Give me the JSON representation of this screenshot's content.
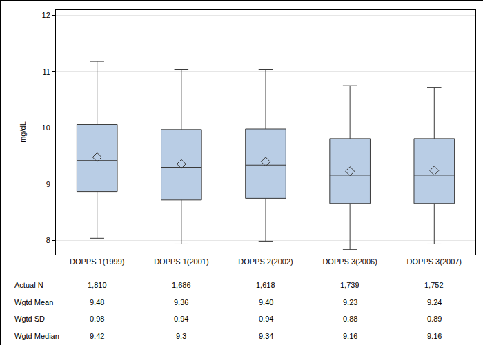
{
  "chart_data": {
    "type": "box",
    "y_label": "mg/dL",
    "categories": [
      "DOPPS 1(1999)",
      "DOPPS 1(2001)",
      "DOPPS 2(2002)",
      "DOPPS 3(2006)",
      "DOPPS 3(2007)"
    ],
    "lower_whisker": [
      8.04,
      7.94,
      7.99,
      7.84,
      7.94
    ],
    "q1": [
      8.87,
      8.72,
      8.75,
      8.66,
      8.66
    ],
    "median": [
      9.42,
      9.3,
      9.34,
      9.16,
      9.16
    ],
    "q3": [
      10.06,
      9.97,
      9.98,
      9.81,
      9.81
    ],
    "upper_whisker": [
      11.18,
      11.04,
      11.04,
      10.75,
      10.72
    ],
    "mean": [
      9.48,
      9.36,
      9.4,
      9.23,
      9.24
    ],
    "color": "#b9cde5",
    "marker": "diamond-open",
    "ylim": [
      7.75,
      12.1
    ],
    "yticks": [
      8,
      9,
      10,
      11,
      12
    ],
    "grid": true,
    "table": {
      "rows": [
        {
          "label": "Actual N",
          "values": [
            "1,810",
            "1,686",
            "1,618",
            "1,739",
            "1,752"
          ]
        },
        {
          "label": "Wgtd Mean",
          "values": [
            "9.48",
            "9.36",
            "9.40",
            "9.23",
            "9.24"
          ]
        },
        {
          "label": "Wgtd SD",
          "values": [
            "0.98",
            "0.94",
            "0.94",
            "0.88",
            "0.89"
          ]
        },
        {
          "label": "Wgtd Median",
          "values": [
            "9.42",
            "9.3",
            "9.34",
            "9.16",
            "9.16"
          ]
        }
      ]
    }
  }
}
